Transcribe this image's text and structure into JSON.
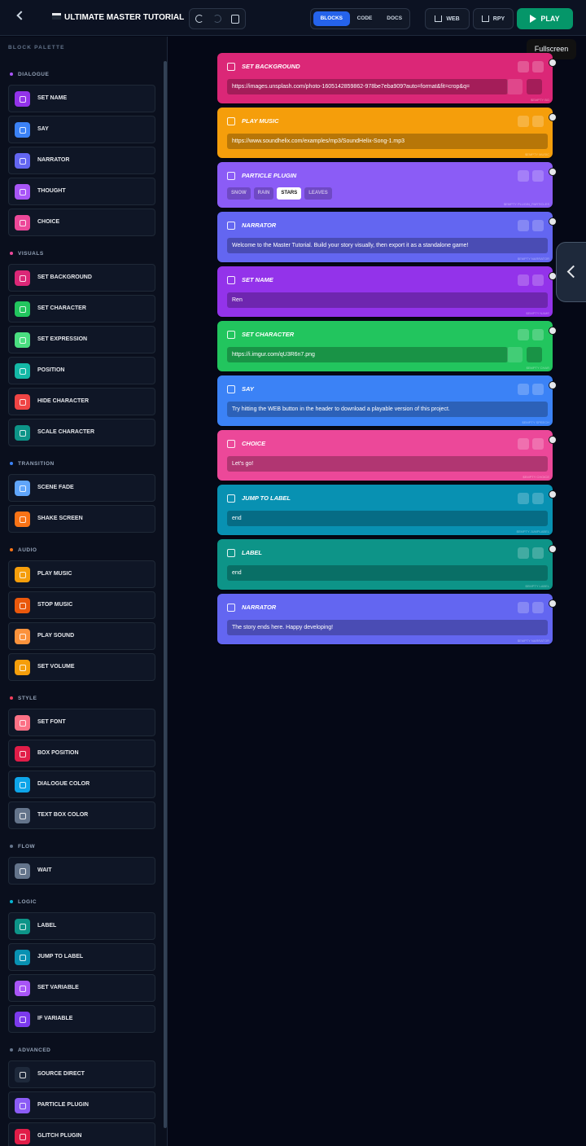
{
  "header": {
    "title": "ULTIMATE MASTER TUTORIAL",
    "tabs": [
      "BLOCKS",
      "CODE",
      "DOCS"
    ],
    "actions": [
      "WEB",
      "RPY",
      "PLAY"
    ]
  },
  "tooltip": "Fullscreen",
  "palette": {
    "title": "BLOCK PALETTE",
    "sections": [
      {
        "name": "DIALOGUE",
        "color": "#a855f7",
        "items": [
          {
            "label": "SET NAME",
            "color": "#9333ea"
          },
          {
            "label": "SAY",
            "color": "#3b82f6"
          },
          {
            "label": "NARRATOR",
            "color": "#6366f1"
          },
          {
            "label": "THOUGHT",
            "color": "#a855f7"
          },
          {
            "label": "CHOICE",
            "color": "#ec4899"
          }
        ]
      },
      {
        "name": "VISUALS",
        "color": "#ec4899",
        "items": [
          {
            "label": "SET BACKGROUND",
            "color": "#db2777"
          },
          {
            "label": "SET CHARACTER",
            "color": "#22c55e"
          },
          {
            "label": "SET EXPRESSION",
            "color": "#4ade80"
          },
          {
            "label": "POSITION",
            "color": "#14b8a6"
          },
          {
            "label": "HIDE CHARACTER",
            "color": "#ef4444"
          },
          {
            "label": "SCALE CHARACTER",
            "color": "#0d9488"
          }
        ]
      },
      {
        "name": "TRANSITION",
        "color": "#3b82f6",
        "items": [
          {
            "label": "SCENE FADE",
            "color": "#60a5fa"
          },
          {
            "label": "SHAKE SCREEN",
            "color": "#f97316"
          }
        ]
      },
      {
        "name": "AUDIO",
        "color": "#f97316",
        "items": [
          {
            "label": "PLAY MUSIC",
            "color": "#f59e0b"
          },
          {
            "label": "STOP MUSIC",
            "color": "#ea580c"
          },
          {
            "label": "PLAY SOUND",
            "color": "#fb923c"
          },
          {
            "label": "SET VOLUME",
            "color": "#f59e0b"
          }
        ]
      },
      {
        "name": "STYLE",
        "color": "#f43f5e",
        "items": [
          {
            "label": "SET FONT",
            "color": "#fb7185"
          },
          {
            "label": "BOX POSITION",
            "color": "#e11d48"
          },
          {
            "label": "DIALOGUE COLOR",
            "color": "#0ea5e9"
          },
          {
            "label": "TEXT BOX COLOR",
            "color": "#64748b"
          }
        ]
      },
      {
        "name": "FLOW",
        "color": "#64748b",
        "items": [
          {
            "label": "WAIT",
            "color": "#64748b"
          }
        ]
      },
      {
        "name": "LOGIC",
        "color": "#06b6d4",
        "items": [
          {
            "label": "LABEL",
            "color": "#0d9488"
          },
          {
            "label": "JUMP TO LABEL",
            "color": "#0891b2"
          },
          {
            "label": "SET VARIABLE",
            "color": "#a855f7"
          },
          {
            "label": "IF VARIABLE",
            "color": "#7c3aed"
          }
        ]
      },
      {
        "name": "ADVANCED",
        "color": "#64748b",
        "items": [
          {
            "label": "SOURCE DIRECT",
            "color": "#1e293b"
          },
          {
            "label": "PARTICLE PLUGIN",
            "color": "#8b5cf6"
          },
          {
            "label": "GLITCH PLUGIN",
            "color": "#e11d48"
          }
        ]
      }
    ]
  },
  "blocks": [
    {
      "title": "SET BACKGROUND",
      "color": "#db2777",
      "value": "https://images.unsplash.com/photo-1605142859862-978be7eba909?auto=format&fit=crop&q=",
      "tag": "$EMPTY BG",
      "media": true
    },
    {
      "title": "PLAY MUSIC",
      "color": "#f59e0b",
      "value": "https://www.soundhelix.com/examples/mp3/SoundHelix-Song-1.mp3",
      "tag": "$EMPTY MUSIC"
    },
    {
      "title": "PARTICLE PLUGIN",
      "color": "#8b5cf6",
      "options": [
        "SNOW",
        "RAIN",
        "STARS",
        "LEAVES"
      ],
      "selected": 2,
      "tag": "$EMPTY PLUGIN_PARTICLES"
    },
    {
      "title": "NARRATOR",
      "color": "#6366f1",
      "value": "Welcome to the Master Tutorial. Build your story visually, then export it as a standalone game!",
      "tag": "$EMPTY NARRATOR"
    },
    {
      "title": "SET NAME",
      "color": "#9333ea",
      "value": "Ren",
      "tag": "$EMPTY NAME"
    },
    {
      "title": "SET CHARACTER",
      "color": "#22c55e",
      "value": "https://i.imgur.com/qU3R6n7.png",
      "tag": "$EMPTY CHAR",
      "media": true
    },
    {
      "title": "SAY",
      "color": "#3b82f6",
      "value": "Try hitting the WEB button in the header to download a playable version of this project.",
      "tag": "$EMPTY SPEECH"
    },
    {
      "title": "CHOICE",
      "color": "#ec4899",
      "value": "Let's go!",
      "tag": "$EMPTY CHOICE"
    },
    {
      "title": "JUMP TO LABEL",
      "color": "#0891b2",
      "value": "end",
      "tag": "$EMPTY JUMPLABEL"
    },
    {
      "title": "LABEL",
      "color": "#0d9488",
      "value": "end",
      "tag": "$EMPTY LABEL"
    },
    {
      "title": "NARRATOR",
      "color": "#6366f1",
      "value": "The story ends here. Happy developing!",
      "tag": "$EMPTY NARRATOR"
    }
  ]
}
